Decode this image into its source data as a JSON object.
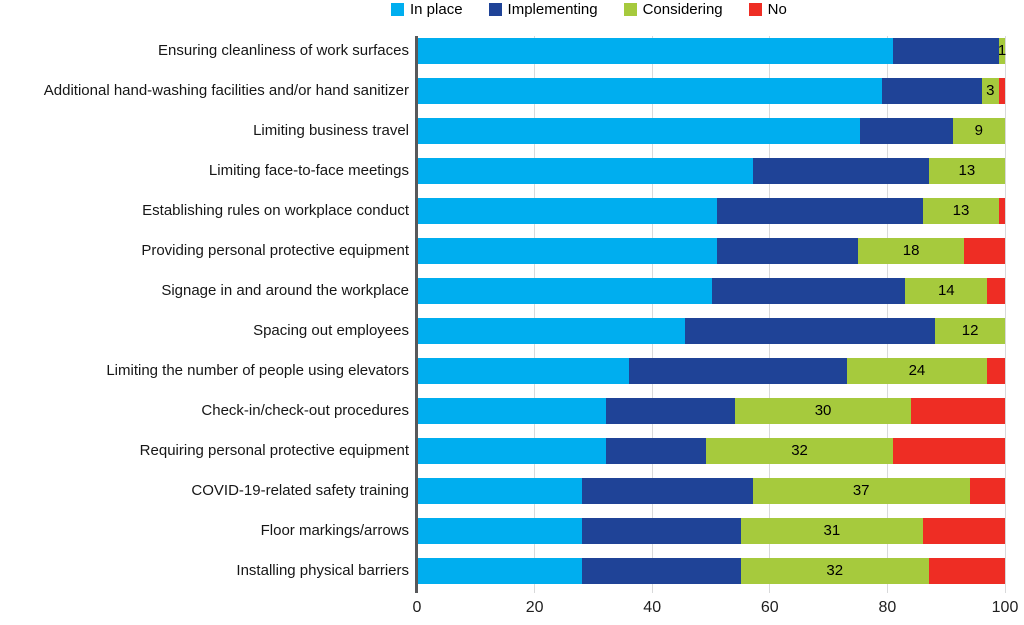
{
  "chart_data": {
    "type": "bar",
    "orientation": "horizontal",
    "stacked": true,
    "xlim": [
      0,
      100
    ],
    "x_ticks": [
      0,
      20,
      40,
      60,
      80,
      100
    ],
    "grid": true,
    "legend_position": "top",
    "value_labels_on": "considering",
    "colors": {
      "in_place": "#00AEEF",
      "implementing": "#1F4397",
      "considering": "#A6CA3D",
      "no": "#EE2D24",
      "gridline": "#d8d9da",
      "axis_line": "#58595b"
    },
    "legend": [
      {
        "key": "in_place",
        "name": "In place",
        "color": "#00AEEF"
      },
      {
        "key": "implementing",
        "name": "Implementing",
        "color": "#1F4397"
      },
      {
        "key": "considering",
        "name": "Considering",
        "color": "#A6CA3D"
      },
      {
        "key": "no",
        "name": "No",
        "color": "#EE2D24"
      }
    ],
    "series_order": [
      "in_place",
      "implementing",
      "considering",
      "no"
    ],
    "rows": [
      {
        "label": "Ensuring cleanliness of work surfaces",
        "in_place": 81,
        "implementing": 18,
        "considering": 1,
        "no": 0
      },
      {
        "label": "Additional hand-washing facilities and/or hand sanitizer",
        "in_place": 79,
        "implementing": 17,
        "considering": 3,
        "no": 1
      },
      {
        "label": "Limiting business travel",
        "in_place": 76,
        "implementing": 16,
        "considering": 9,
        "no": 0
      },
      {
        "label": "Limiting face-to-face meetings",
        "in_place": 57,
        "implementing": 30,
        "considering": 13,
        "no": 0
      },
      {
        "label": "Establishing rules on workplace conduct",
        "in_place": 51,
        "implementing": 35,
        "considering": 13,
        "no": 1
      },
      {
        "label": "Providing personal protective equipment",
        "in_place": 51,
        "implementing": 24,
        "considering": 18,
        "no": 7
      },
      {
        "label": "Signage in and around the workplace",
        "in_place": 50,
        "implementing": 33,
        "considering": 14,
        "no": 3
      },
      {
        "label": "Spacing out employees",
        "in_place": 46,
        "implementing": 43,
        "considering": 12,
        "no": 0
      },
      {
        "label": "Limiting the number of people using elevators",
        "in_place": 36,
        "implementing": 37,
        "considering": 24,
        "no": 3
      },
      {
        "label": "Check-in/check-out procedures",
        "in_place": 32,
        "implementing": 22,
        "considering": 30,
        "no": 16
      },
      {
        "label": "Requiring personal protective equipment",
        "in_place": 32,
        "implementing": 17,
        "considering": 32,
        "no": 19
      },
      {
        "label": "COVID-19-related safety training",
        "in_place": 28,
        "implementing": 29,
        "considering": 37,
        "no": 6
      },
      {
        "label": "Floor markings/arrows",
        "in_place": 28,
        "implementing": 27,
        "considering": 31,
        "no": 14
      },
      {
        "label": "Installing physical barriers",
        "in_place": 28,
        "implementing": 27,
        "considering": 32,
        "no": 13
      }
    ]
  }
}
